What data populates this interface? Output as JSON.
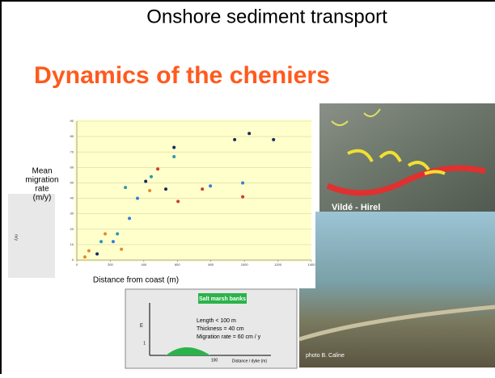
{
  "slide": {
    "title": "Onshore sediment transport",
    "subtitle": "Dynamics of the cheniers",
    "side_label": "m/y",
    "photo_top_label": "Vildé - Hirel",
    "photo_bottom_credit": "photo B. Caline",
    "inset": {
      "title": "Salt marsh banks",
      "lines": [
        "Length < 100 m",
        "Thickness = 40 cm",
        "Migration rate = 60 cm / y"
      ],
      "ylabel": "m",
      "xlabel": "Distance / dyke (m)",
      "xtick": "100",
      "ytick": "1"
    }
  },
  "chart_data": {
    "type": "scatter",
    "ylabel_lines": [
      "Mean",
      "migration",
      "rate",
      "(m/y)"
    ],
    "xlabel": "Distance from coast (m)",
    "xlim": [
      0,
      1400
    ],
    "xticks": [
      0,
      200,
      400,
      600,
      800,
      1000,
      1200,
      1400
    ],
    "ylim": [
      0,
      90
    ],
    "yticks": [
      0,
      10,
      20,
      30,
      40,
      50,
      60,
      70,
      80,
      90
    ],
    "grid": true,
    "series": [
      {
        "color": "#1a2a5a",
        "x": [
          1029,
          942,
          1174,
          580,
          411,
          531,
          121
        ],
        "values": [
          82,
          78,
          78,
          73,
          51,
          46,
          4
        ]
      },
      {
        "color": "#2a9ab0",
        "x": [
          580,
          444,
          290,
          242,
          145
        ],
        "values": [
          67,
          54,
          47,
          17,
          12
        ]
      },
      {
        "color": "#e88a2a",
        "x": [
          435,
          169,
          72,
          266,
          48
        ],
        "values": [
          45,
          17,
          6,
          7,
          2
        ]
      },
      {
        "color": "#d23a2a",
        "x": [
          990,
          604,
          749,
          483
        ],
        "values": [
          41,
          38,
          46,
          59
        ]
      },
      {
        "color": "#3a7ad8",
        "x": [
          990,
          314,
          217,
          362,
          797
        ],
        "values": [
          50,
          27,
          12,
          40,
          48
        ]
      }
    ]
  }
}
